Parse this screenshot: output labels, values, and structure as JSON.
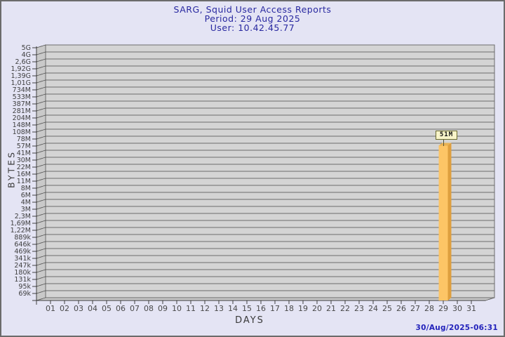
{
  "title": {
    "line1": "SARG, Squid User Access Reports",
    "line2": "Period: 29 Aug 2025",
    "line3": "User: 10.42.45.77"
  },
  "footer": {
    "timestamp": "30/Aug/2025-06:31"
  },
  "colors": {
    "page_bg": "#E4E4F4",
    "border": "#6b6b6b",
    "title_navy": "#2828a0",
    "timestamp_blue": "#2222bb",
    "plot_bg": "#D4D4D4",
    "wall_bg": "#C9C9C9",
    "grid_line": "#6b6b6b",
    "tick_text": "#3f3f3f",
    "bar_front": "#FDC566",
    "bar_side": "#DE9F3F",
    "bar_top": "#E8B254",
    "tag_bg": "#F8F4C9",
    "tag_border": "#6b6b2d"
  },
  "chart_data": {
    "type": "bar",
    "title": "SARG, Squid User Access Reports",
    "period": "29 Aug 2025",
    "user": "10.42.45.77",
    "xlabel": "DAYS",
    "ylabel": "BYTES",
    "yscale": "log",
    "grid": true,
    "legend": false,
    "categories": [
      "01",
      "02",
      "03",
      "04",
      "05",
      "06",
      "07",
      "08",
      "09",
      "10",
      "11",
      "12",
      "13",
      "14",
      "15",
      "16",
      "17",
      "18",
      "19",
      "20",
      "21",
      "22",
      "23",
      "24",
      "25",
      "26",
      "27",
      "28",
      "29",
      "30",
      "31"
    ],
    "values": [
      0,
      0,
      0,
      0,
      0,
      0,
      0,
      0,
      0,
      0,
      0,
      0,
      0,
      0,
      0,
      0,
      0,
      0,
      0,
      0,
      0,
      0,
      0,
      0,
      0,
      0,
      0,
      0,
      51000000,
      0,
      0
    ],
    "value_labels": {
      "29": "51M"
    },
    "ytick_labels": [
      "5G",
      "4G",
      "2,6G",
      "1,92G",
      "1,39G",
      "1,01G",
      "734M",
      "533M",
      "387M",
      "281M",
      "204M",
      "148M",
      "108M",
      "78M",
      "57M",
      "41M",
      "30M",
      "22M",
      "16M",
      "11M",
      "8M",
      "6M",
      "4M",
      "3M",
      "2,3M",
      "1,69M",
      "1,22M",
      "889k",
      "646k",
      "469k",
      "341k",
      "247k",
      "180k",
      "131k",
      "95k",
      "69k"
    ],
    "ylim": [
      69000,
      5000000000
    ]
  }
}
